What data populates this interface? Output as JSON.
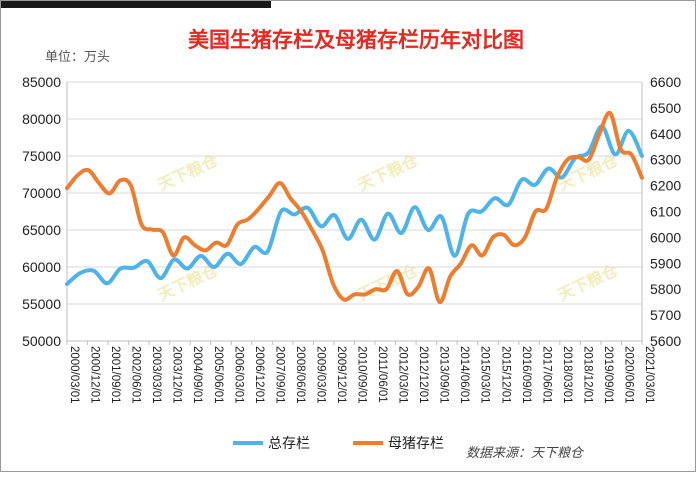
{
  "chart_data": {
    "type": "line",
    "title": "美国生猪存栏及母猪存栏历年对比图",
    "unit_label": "单位：万头",
    "source": "数据来源：天下粮仓",
    "watermark": "天下粮仓",
    "x_tick_labels": [
      "2000/03/01",
      "2000/12/01",
      "2001/09/01",
      "2002/06/01",
      "2003/03/01",
      "2003/12/01",
      "2004/09/01",
      "2005/06/01",
      "2006/03/01",
      "2006/12/01",
      "2007/09/01",
      "2008/06/01",
      "2009/03/01",
      "2009/12/01",
      "2010/09/01",
      "2011/06/01",
      "2012/03/01",
      "2012/12/01",
      "2013/09/01",
      "2014/06/01",
      "2015/03/01",
      "2015/12/01",
      "2016/09/01",
      "2017/06/01",
      "2018/03/01",
      "2018/12/01",
      "2019/09/01",
      "2020/06/01",
      "2021/03/01"
    ],
    "left_axis": {
      "ylim": [
        50000,
        85000
      ],
      "ticks": [
        "50000",
        "55000",
        "60000",
        "65000",
        "70000",
        "75000",
        "80000",
        "85000"
      ]
    },
    "right_axis": {
      "ylim": [
        5600,
        6600
      ],
      "ticks": [
        "5600",
        "5700",
        "5800",
        "5900",
        "6000",
        "6100",
        "6200",
        "6300",
        "6400",
        "6500",
        "6600"
      ]
    },
    "grid": "horizontal",
    "legend_position": "bottom",
    "series": [
      {
        "name": "总存栏",
        "color": "#4eb3e8",
        "axis": "left",
        "values": [
          57700,
          59200,
          59500,
          57800,
          59800,
          59900,
          60800,
          58500,
          61000,
          59800,
          61500,
          60000,
          61800,
          60400,
          62700,
          62100,
          67500,
          67100,
          68000,
          65500,
          67000,
          63800,
          66400,
          63700,
          67200,
          64600,
          68100,
          65000,
          66800,
          61500,
          67200,
          67500,
          69300,
          68400,
          71800,
          71100,
          73300,
          72100,
          74700,
          75500,
          79000,
          75200,
          78400,
          75000
        ]
      },
      {
        "name": "母猪存栏",
        "color": "#ed7d31",
        "axis": "right",
        "values": [
          6190,
          6240,
          6260,
          6210,
          6170,
          6220,
          6200,
          6050,
          6030,
          6020,
          5930,
          6000,
          5970,
          5950,
          5980,
          5970,
          6050,
          6070,
          6110,
          6160,
          6210,
          6150,
          6100,
          6030,
          5950,
          5820,
          5760,
          5780,
          5780,
          5800,
          5800,
          5870,
          5780,
          5810,
          5880,
          5750,
          5850,
          5900,
          5970,
          5930,
          6000,
          6010,
          5970,
          6000,
          6100,
          6110,
          6230,
          6300,
          6310,
          6300,
          6400,
          6480,
          6340,
          6320,
          6230
        ]
      }
    ]
  }
}
